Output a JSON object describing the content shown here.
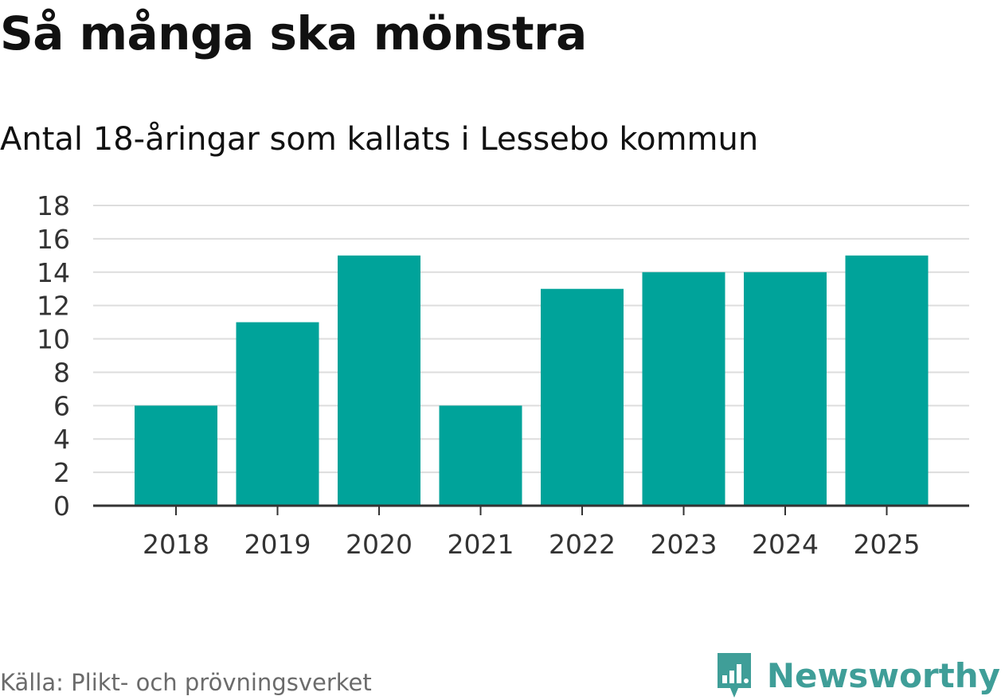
{
  "title": "Så många ska mönstra",
  "subtitle": "Antal 18-åringar som kallats i Lessebo kommun",
  "source": "Källa: Plikt- och prövningsverket",
  "brand": {
    "name": "Newsworthy",
    "icon": "newsworthy-logo-icon"
  },
  "colors": {
    "bar": "#00a39a",
    "grid": "#dddddd",
    "axis": "#333333",
    "brand": "#3f9e98"
  },
  "chart_data": {
    "type": "bar",
    "title": "Så många ska mönstra",
    "subtitle": "Antal 18-åringar som kallats i Lessebo kommun",
    "xlabel": "",
    "ylabel": "",
    "categories": [
      "2018",
      "2019",
      "2020",
      "2021",
      "2022",
      "2023",
      "2024",
      "2025"
    ],
    "values": [
      6,
      11,
      15,
      6,
      13,
      14,
      14,
      15
    ],
    "ylim": [
      0,
      18
    ],
    "yticks": [
      0,
      2,
      4,
      6,
      8,
      10,
      12,
      14,
      16,
      18
    ],
    "grid": true,
    "legend": "none"
  }
}
